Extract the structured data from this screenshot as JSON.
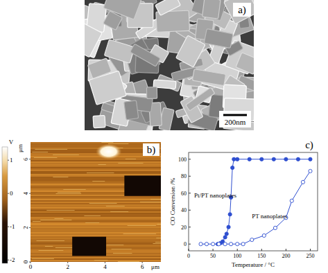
{
  "panel_a": {
    "label": "a)",
    "scale_bar_label": "200nm"
  },
  "panel_b": {
    "label": "b)",
    "x_label": "μm",
    "y_label": "μm",
    "xlim": [
      0,
      7
    ],
    "ylim": [
      0,
      7
    ],
    "xticks": [
      0,
      2,
      4,
      6
    ],
    "yticks": [
      0,
      2,
      4,
      6
    ],
    "colorbar": {
      "unit": "V",
      "range": [
        -2.1,
        1.4
      ],
      "ticks": [
        1,
        0,
        -1,
        -2
      ]
    }
  },
  "chart_data": {
    "type": "line",
    "title": "c)",
    "x_label": "Temperature / °C",
    "y_label": "CO Conversion /%",
    "xlim": [
      0,
      265
    ],
    "ylim": [
      -8,
      108
    ],
    "xticks": [
      0,
      50,
      100,
      150,
      200,
      250
    ],
    "yticks": [
      0,
      20,
      40,
      60,
      80,
      100
    ],
    "series": [
      {
        "name": "Pt/PT nanoplates",
        "color": "#2f4fd0",
        "marker": "filled-circle",
        "line_style": "solid",
        "x": [
          60,
          65,
          70,
          75,
          78,
          82,
          85,
          87,
          90,
          93,
          100,
          125,
          150,
          175,
          200,
          225,
          250
        ],
        "values": [
          0,
          1,
          3,
          8,
          12,
          20,
          35,
          55,
          90,
          100,
          100,
          100,
          100,
          100,
          100,
          100,
          100
        ]
      },
      {
        "name": "PT nanoplates",
        "color": "#2f4fd0",
        "marker": "open-circle",
        "line_style": "solid",
        "x": [
          25,
          37,
          50,
          62,
          75,
          87,
          100,
          112,
          130,
          155,
          178,
          200,
          212,
          235,
          250
        ],
        "values": [
          0,
          0,
          0,
          0,
          0,
          0,
          0,
          0,
          5,
          10,
          19,
          31,
          51,
          73,
          86
        ]
      }
    ]
  }
}
